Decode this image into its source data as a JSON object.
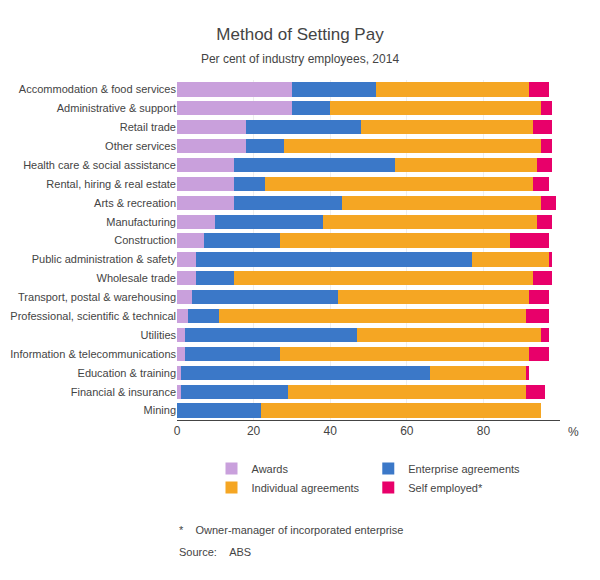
{
  "chart_data": {
    "type": "bar",
    "orientation": "horizontal",
    "stacked": true,
    "title": "Method of Setting Pay",
    "subtitle": "Per cent of industry employees, 2014",
    "xlabel": "%",
    "categories": [
      "Accommodation & food services",
      "Administrative & support",
      "Retail trade",
      "Other services",
      "Health care & social assistance",
      "Rental, hiring & real estate",
      "Arts & recreation",
      "Manufacturing",
      "Construction",
      "Public administration & safety",
      "Wholesale trade",
      "Transport, postal & warehousing",
      "Professional, scientific & technical",
      "Utilities",
      "Information & telecommunications",
      "Education & training",
      "Financial & insurance",
      "Mining"
    ],
    "series": [
      {
        "name": "Awards",
        "color": "#c9a0dc",
        "values": [
          30,
          30,
          18,
          18,
          15,
          15,
          15,
          10,
          7,
          5,
          5,
          4,
          3,
          2,
          2,
          1,
          1,
          0
        ]
      },
      {
        "name": "Enterprise agreements",
        "color": "#3b78c8",
        "values": [
          22,
          10,
          30,
          10,
          42,
          8,
          28,
          28,
          20,
          72,
          10,
          38,
          8,
          45,
          25,
          65,
          28,
          22
        ]
      },
      {
        "name": "Individual agreements",
        "color": "#f5a623",
        "values": [
          40,
          55,
          45,
          67,
          37,
          70,
          52,
          56,
          60,
          20,
          78,
          50,
          80,
          48,
          65,
          25,
          62,
          73
        ]
      },
      {
        "name": "Self employed*",
        "color": "#e8006a",
        "values": [
          5,
          3,
          5,
          3,
          4,
          4,
          4,
          4,
          10,
          1,
          5,
          5,
          6,
          2,
          5,
          1,
          5,
          0
        ]
      }
    ],
    "xlim": [
      0,
      100
    ],
    "xticks": [
      0,
      20,
      40,
      60,
      80
    ],
    "grid": true,
    "legend": "bottom",
    "annotations": [
      "*    Owner-manager of incorporated enterprise",
      "Source:    ABS"
    ]
  }
}
